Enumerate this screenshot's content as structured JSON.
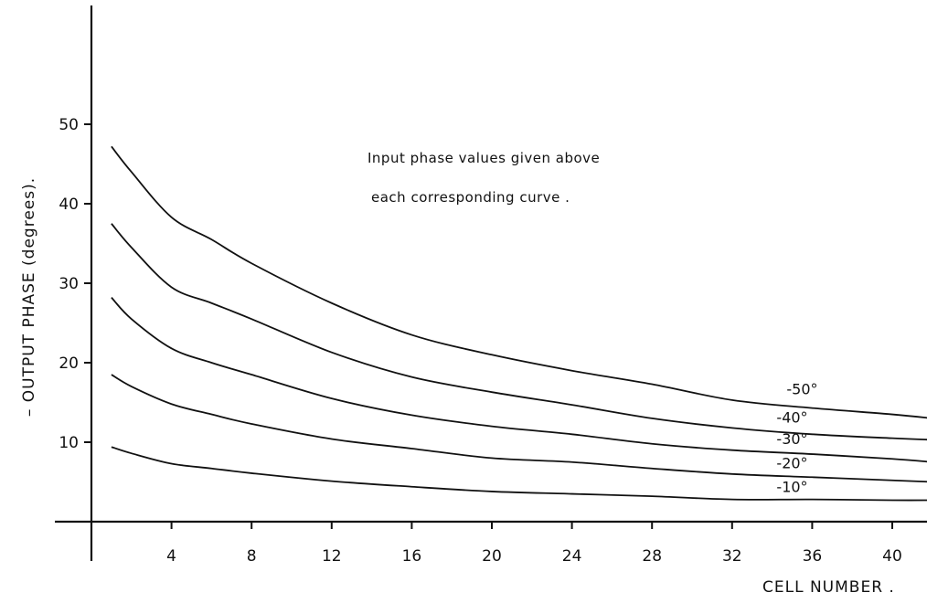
{
  "chart_data": {
    "type": "line",
    "xlabel": "CELL NUMBER .",
    "ylabel": "– OUTPUT PHASE  (degrees).",
    "xlim": [
      0,
      42
    ],
    "ylim": [
      0,
      50
    ],
    "x_ticks": [
      4,
      8,
      12,
      16,
      20,
      24,
      28,
      32,
      36,
      40
    ],
    "y_ticks": [
      10,
      20,
      30,
      40,
      50
    ],
    "grid": false,
    "annotation": [
      "Input  phase  values  given  above",
      "each  corresponding  curve ."
    ],
    "x": [
      1,
      2,
      4,
      6,
      8,
      12,
      16,
      20,
      24,
      28,
      32,
      36,
      40,
      42
    ],
    "series": [
      {
        "name": "-50°",
        "values": [
          47.2,
          44.0,
          38.3,
          35.5,
          32.5,
          27.5,
          23.5,
          21.0,
          19.0,
          17.3,
          15.3,
          14.3,
          13.5,
          13.0
        ]
      },
      {
        "name": "-40°",
        "values": [
          37.5,
          34.5,
          29.5,
          27.5,
          25.5,
          21.3,
          18.2,
          16.3,
          14.7,
          13.0,
          11.8,
          11.0,
          10.5,
          10.3
        ]
      },
      {
        "name": "-30°",
        "values": [
          28.2,
          25.5,
          21.8,
          20.0,
          18.5,
          15.5,
          13.4,
          12.0,
          11.0,
          9.8,
          9.0,
          8.5,
          7.9,
          7.5
        ]
      },
      {
        "name": "-20°",
        "values": [
          18.5,
          17.0,
          14.8,
          13.5,
          12.3,
          10.4,
          9.2,
          8.0,
          7.5,
          6.7,
          6.0,
          5.6,
          5.2,
          5.0
        ]
      },
      {
        "name": "-10°",
        "values": [
          9.4,
          8.6,
          7.3,
          6.7,
          6.1,
          5.1,
          4.4,
          3.8,
          3.5,
          3.2,
          2.8,
          2.8,
          2.7,
          2.7
        ]
      }
    ]
  }
}
